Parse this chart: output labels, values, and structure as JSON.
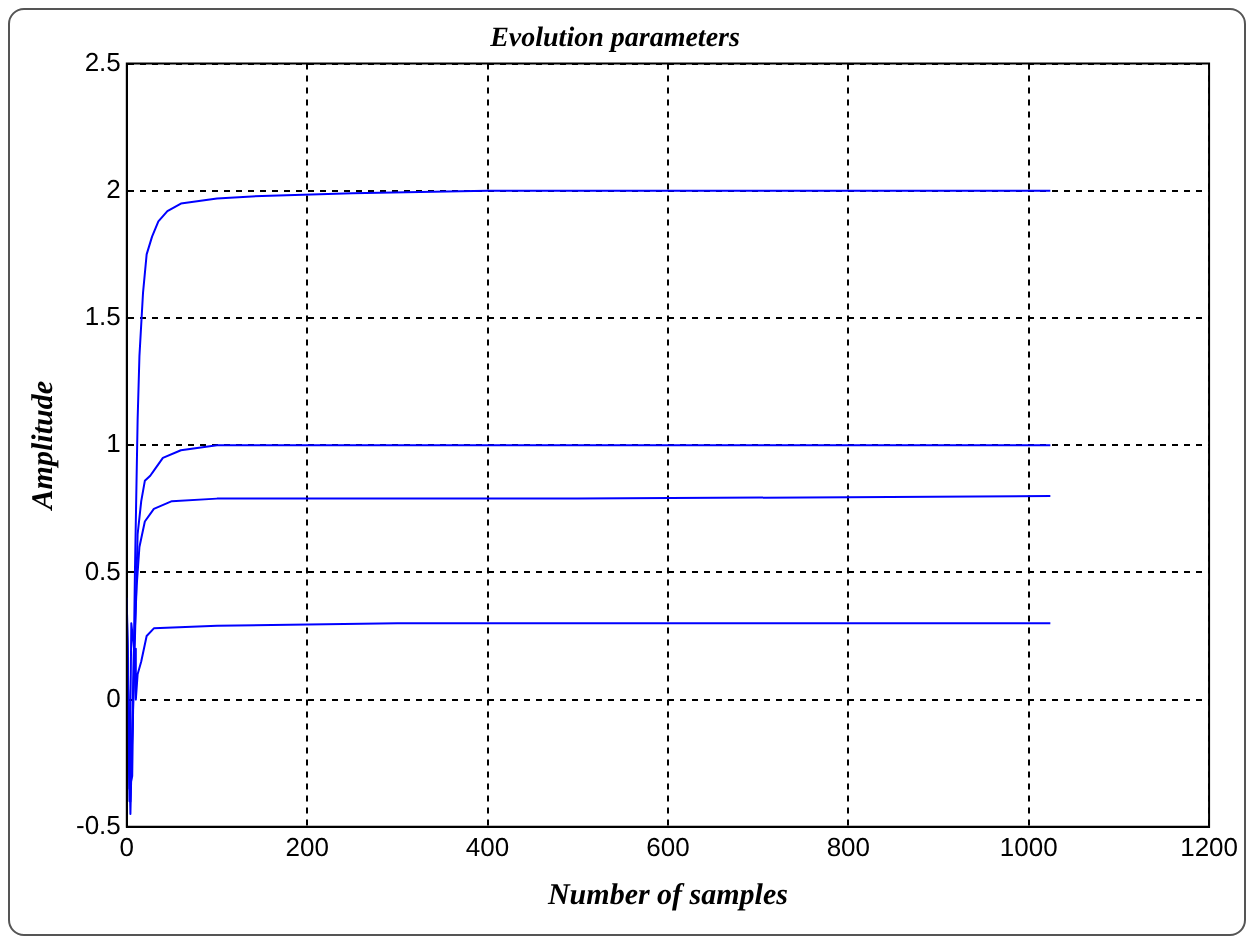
{
  "chart_data": {
    "type": "line",
    "title": "Evolution parameters",
    "xlabel": "Number of samples",
    "ylabel": "Amplitude",
    "xlim": [
      0,
      1200
    ],
    "xticks": [
      0,
      200,
      400,
      600,
      800,
      1000,
      1200
    ],
    "ylim": [
      -0.5,
      2.5
    ],
    "yticks": [
      -0.5,
      0,
      0.5,
      1,
      1.5,
      2,
      2.5
    ],
    "grid": true,
    "marker": "none",
    "line_style": "solid",
    "series": [
      {
        "color": "#0000ff",
        "x": [
          0,
          3,
          6,
          9,
          12,
          14,
          18,
          22,
          28,
          35,
          45,
          60,
          100,
          150,
          250,
          400,
          1024
        ],
        "values": [
          0.4,
          -0.35,
          -0.3,
          0.5,
          1.1,
          1.35,
          1.6,
          1.75,
          1.82,
          1.88,
          1.92,
          1.95,
          1.97,
          1.98,
          1.99,
          2,
          2
        ]
      },
      {
        "color": "#0000ff",
        "x": [
          0,
          4,
          8,
          12,
          16,
          20,
          26,
          30,
          40,
          60,
          100,
          200,
          1024
        ],
        "values": [
          0.35,
          -0.4,
          0.1,
          0.65,
          0.78,
          0.86,
          0.88,
          0.9,
          0.95,
          0.98,
          1,
          1,
          1
        ]
      },
      {
        "color": "#0000ff",
        "x": [
          0,
          4,
          8,
          11,
          14,
          20,
          30,
          50,
          100,
          500,
          1024
        ],
        "values": [
          0.3,
          -0.45,
          0.2,
          0.45,
          0.6,
          0.7,
          0.75,
          0.78,
          0.79,
          0.79,
          0.8
        ]
      },
      {
        "color": "#0000ff",
        "x": [
          0,
          3,
          5,
          8,
          10,
          12,
          16,
          22,
          30,
          100,
          300,
          1024
        ],
        "values": [
          0.4,
          -0.4,
          0.3,
          0.2,
          0,
          0.1,
          0.15,
          0.25,
          0.28,
          0.29,
          0.3,
          0.3
        ]
      }
    ]
  }
}
